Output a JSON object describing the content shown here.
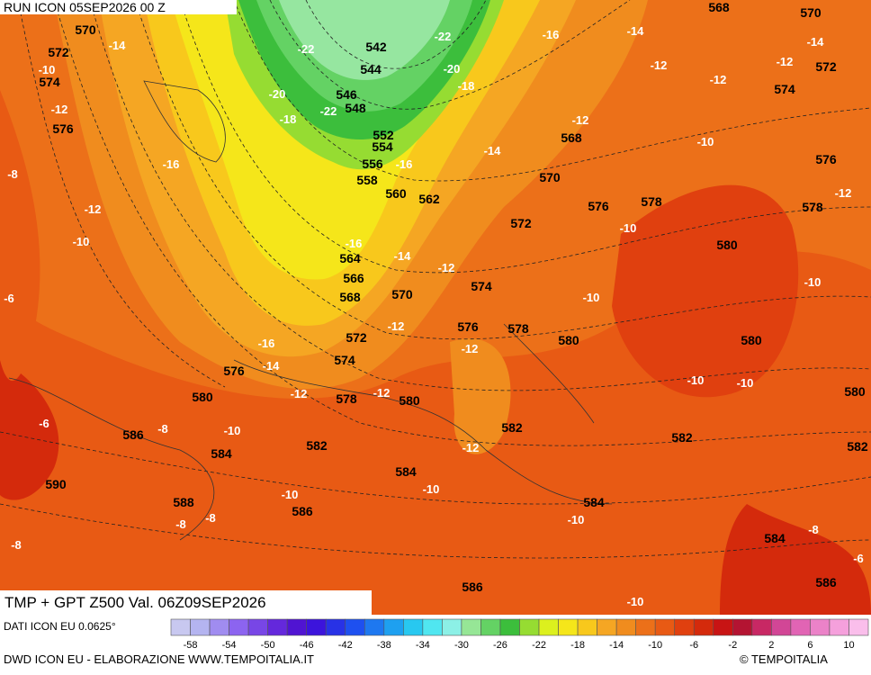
{
  "header": {
    "run": "RUN ICON 05SEP2026 00 Z",
    "title": "TMP + GPT Z500 Val. 06Z09SEP2026",
    "source": "DATI ICON EU 0.0625°",
    "credit": "DWD ICON EU - ELABORAZIONE WWW.TEMPOITALIA.IT",
    "copyright": "© TEMPOITALIA"
  },
  "gpt_labels": [
    570,
    572,
    574,
    576,
    542,
    544,
    546,
    548,
    552,
    554,
    556,
    558,
    560,
    562,
    564,
    566,
    568,
    570,
    572,
    574,
    576,
    578,
    580,
    580,
    582,
    584,
    584,
    586,
    588,
    590,
    586,
    586,
    584,
    582,
    576,
    578,
    580,
    574,
    572,
    570,
    568,
    576,
    578,
    580,
    580,
    578,
    576,
    574,
    572,
    570,
    568,
    582,
    582,
    580,
    584,
    586
  ],
  "temp_labels": [
    -14,
    -10,
    -12,
    -8,
    -16,
    -12,
    -10,
    -6,
    -22,
    -20,
    -18,
    -22,
    -22,
    -20,
    -18,
    -16,
    -14,
    -14,
    -12,
    -12,
    -12,
    -12,
    -14,
    -16,
    -10,
    -12,
    -16,
    -14,
    -12,
    -10,
    -10,
    -10,
    -12,
    -16,
    -14,
    -12,
    -12,
    -12,
    -10,
    -10,
    -6,
    -8,
    -10,
    -12,
    -10,
    -10,
    -8,
    -8,
    -8,
    -10,
    -8,
    -6,
    -10
  ],
  "colorbar": {
    "ticks": [
      -58,
      -54,
      -50,
      -46,
      -42,
      -38,
      -34,
      -30,
      -26,
      -22,
      -18,
      -14,
      -10,
      -6,
      -2,
      2,
      6,
      10
    ],
    "colors": [
      "#c8c8f0",
      "#b4b4f0",
      "#a08cf0",
      "#8c64f0",
      "#7846e6",
      "#6428dc",
      "#5014d2",
      "#3c14dc",
      "#2832e6",
      "#1e50f0",
      "#1e78f0",
      "#1ea0f0",
      "#28c8f0",
      "#50e6f0",
      "#8cf0e6",
      "#96e696",
      "#64d264",
      "#3cbe3c",
      "#96dc32",
      "#dcf01e",
      "#f5e61a",
      "#f8c81c",
      "#f5a623",
      "#f08c1e",
      "#ec7019",
      "#e85a14",
      "#e0400f",
      "#d42a0c",
      "#c81414",
      "#b41432",
      "#c82864",
      "#d24696",
      "#e164b4",
      "#eb82c8",
      "#f5a0dc",
      "#fabeeb"
    ]
  }
}
